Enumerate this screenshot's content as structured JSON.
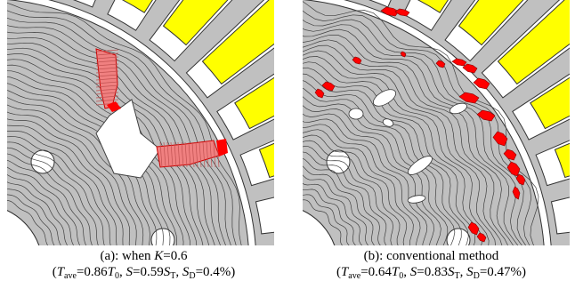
{
  "figure": {
    "panel_a": {
      "label": "(a): when ",
      "k_sym": "K",
      "k_value": "=0.6",
      "metrics": [
        {
          "sym": "T",
          "sub": "ave",
          "val": "=0.86",
          "ref": "T",
          "refsub": "0",
          "sep": ", "
        },
        {
          "sym": "S",
          "sub": "",
          "val": "=0.59",
          "ref": "S",
          "refsub": "T",
          "sep": ", "
        },
        {
          "sym": "S",
          "sub": "D",
          "val": "=0.4%",
          "ref": "",
          "refsub": "",
          "sep": ""
        }
      ]
    },
    "panel_b": {
      "label": "(b): conventional method",
      "metrics": [
        {
          "sym": "T",
          "sub": "ave",
          "val": "=0.64",
          "ref": "T",
          "refsub": "0",
          "sep": ", "
        },
        {
          "sym": "S",
          "sub": "",
          "val": "=0.83",
          "ref": "S",
          "refsub": "T",
          "sep": ", "
        },
        {
          "sym": "S",
          "sub": "D",
          "val": "=0.47%",
          "ref": "",
          "refsub": "",
          "sep": ""
        }
      ]
    },
    "colors": {
      "iron_gray": "#c0c0c0",
      "coil_yellow": "#ffff00",
      "flux_barrier_red": "#ff0000",
      "flux_barrier_pink": "#f08080",
      "flux_line": "#404040"
    }
  }
}
